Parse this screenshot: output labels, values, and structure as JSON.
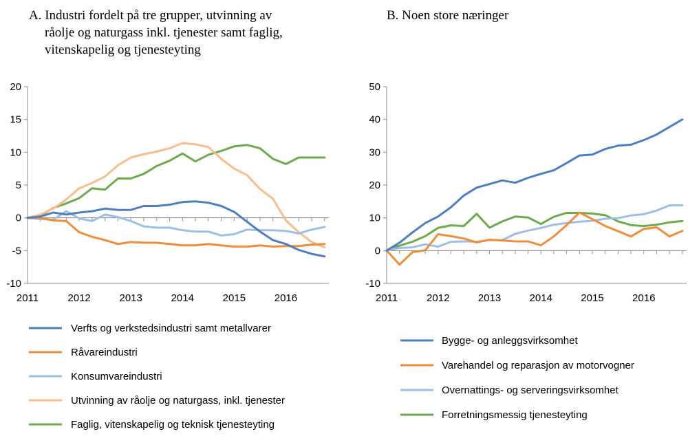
{
  "chart_data": [
    {
      "type": "line",
      "title": "A. Industri fordelt på tre grupper, utvinning av råolje og naturgass inkl. tjenester samt faglig, vitenskapelig og tjenesteyting",
      "title_lines": [
        "A. Industri fordelt på tre grupper, utvinning av",
        "råolje og naturgass inkl. tjenester samt faglig,",
        "vitenskapelig og tjenesteyting"
      ],
      "xlabel": "",
      "ylabel": "",
      "xlim": [
        2011,
        2016.833
      ],
      "ylim": [
        -10,
        20
      ],
      "yticks": [
        -10,
        -5,
        0,
        5,
        10,
        15,
        20
      ],
      "ytick_labels": [
        "-10",
        "-5",
        "0",
        "5",
        "10",
        "15",
        "20"
      ],
      "xticks": [
        2011,
        2012,
        2013,
        2014,
        2015,
        2016
      ],
      "xtick_labels": [
        "2011",
        "2012",
        "2013",
        "2014",
        "2015",
        "2016"
      ],
      "grid": false,
      "legend_position": "bottom",
      "x": [
        2011.0,
        2011.25,
        2011.5,
        2011.75,
        2012.0,
        2012.25,
        2012.5,
        2012.75,
        2013.0,
        2013.25,
        2013.5,
        2013.75,
        2014.0,
        2014.25,
        2014.5,
        2014.75,
        2015.0,
        2015.25,
        2015.5,
        2015.75,
        2016.0,
        2016.25,
        2016.5,
        2016.75
      ],
      "series": [
        {
          "name": "Verfts og verkstedsindustri samt metallvarer",
          "color": "#4E7EC0",
          "values": [
            0,
            0.2,
            0.8,
            0.5,
            0.8,
            1.0,
            1.4,
            1.2,
            1.2,
            1.8,
            1.8,
            2.0,
            2.4,
            2.5,
            2.3,
            1.8,
            0.9,
            -0.6,
            -2.1,
            -3.4,
            -4.0,
            -4.9,
            -5.5,
            -5.9
          ]
        },
        {
          "name": "Råvareindustri",
          "color": "#F08D3B",
          "values": [
            0,
            0.0,
            -0.4,
            -0.5,
            -2.2,
            -2.9,
            -3.4,
            -4.0,
            -3.7,
            -3.8,
            -3.8,
            -4.0,
            -4.2,
            -4.2,
            -4.0,
            -4.2,
            -4.4,
            -4.4,
            -4.2,
            -4.4,
            -4.3,
            -4.3,
            -4.1,
            -4.0
          ]
        },
        {
          "name": "Konsumvareindustri",
          "color": "#9FBEE3",
          "values": [
            0,
            -0.2,
            -0.3,
            1.0,
            -0.1,
            -0.5,
            0.5,
            0.1,
            -0.5,
            -1.3,
            -1.5,
            -1.5,
            -1.9,
            -2.1,
            -2.1,
            -2.7,
            -2.5,
            -1.8,
            -1.9,
            -1.9,
            -2.0,
            -2.4,
            -1.8,
            -1.4
          ]
        },
        {
          "name": "Utvinning av råolje og naturgass, inkl. tjenester",
          "color": "#F7BE8D",
          "values": [
            0,
            0.5,
            1.4,
            2.8,
            4.5,
            5.3,
            6.3,
            8.0,
            9.2,
            9.7,
            10.1,
            10.6,
            11.4,
            11.2,
            10.8,
            9.0,
            7.5,
            6.5,
            4.4,
            2.9,
            -0.4,
            -2.2,
            -3.7,
            -4.5
          ]
        },
        {
          "name": "Faglig, vitenskapelig og teknisk tjenesteyting",
          "color": "#6EAA4D",
          "values": [
            0,
            0.3,
            1.5,
            2.2,
            3.0,
            4.5,
            4.3,
            6.0,
            6.0,
            6.7,
            7.9,
            8.7,
            9.8,
            8.6,
            9.6,
            10.2,
            10.9,
            11.1,
            10.6,
            9.0,
            8.2,
            9.2,
            9.2,
            9.2
          ]
        }
      ]
    },
    {
      "type": "line",
      "title": "B. Noen store næringer",
      "title_lines": [
        "B. Noen store næringer"
      ],
      "xlabel": "",
      "ylabel": "",
      "xlim": [
        2011,
        2016.833
      ],
      "ylim": [
        -10,
        50
      ],
      "yticks": [
        -10,
        0,
        10,
        20,
        30,
        40,
        50
      ],
      "ytick_labels": [
        "-10",
        "0",
        "10",
        "20",
        "30",
        "40",
        "50"
      ],
      "xticks": [
        2011,
        2012,
        2013,
        2014,
        2015,
        2016
      ],
      "xtick_labels": [
        "2011",
        "2012",
        "2013",
        "2014",
        "2015",
        "2016"
      ],
      "grid": false,
      "legend_position": "bottom",
      "x": [
        2011.0,
        2011.25,
        2011.5,
        2011.75,
        2012.0,
        2012.25,
        2012.5,
        2012.75,
        2013.0,
        2013.25,
        2013.5,
        2013.75,
        2014.0,
        2014.25,
        2014.5,
        2014.75,
        2015.0,
        2015.25,
        2015.5,
        2015.75,
        2016.0,
        2016.25,
        2016.5,
        2016.75
      ],
      "series": [
        {
          "name": "Bygge- og anleggsvirksomhet",
          "color": "#4E7EC0",
          "values": [
            0,
            2.4,
            5.5,
            8.4,
            10.4,
            13.2,
            16.8,
            19.2,
            20.3,
            21.4,
            20.7,
            22.2,
            23.4,
            24.5,
            26.7,
            29.0,
            29.3,
            31.0,
            32.0,
            32.3,
            33.7,
            35.4,
            37.7,
            40.0
          ]
        },
        {
          "name": "Varehandel og reparasjon av motorvogner",
          "color": "#F08D3B",
          "values": [
            0,
            -4.3,
            -0.5,
            0.1,
            5.0,
            4.4,
            3.7,
            2.5,
            3.3,
            3.1,
            2.8,
            2.8,
            1.6,
            4.3,
            7.8,
            11.6,
            9.6,
            7.5,
            5.9,
            4.3,
            6.6,
            7.1,
            4.3,
            6.0
          ]
        },
        {
          "name": "Overnattings- og serveringsvirksomhet",
          "color": "#9FBEE3",
          "values": [
            0,
            0.8,
            1.0,
            1.9,
            1.2,
            2.7,
            2.8,
            2.7,
            3.2,
            3.2,
            5.1,
            6.1,
            6.9,
            7.9,
            8.4,
            8.8,
            9.1,
            9.7,
            9.9,
            10.7,
            11.1,
            12.2,
            13.8,
            13.8
          ]
        },
        {
          "name": "Forretningsmessig tjenesteyting",
          "color": "#6EAA4D",
          "values": [
            0,
            1.5,
            2.7,
            4.4,
            6.9,
            7.7,
            7.5,
            11.2,
            7.0,
            8.9,
            10.4,
            10.1,
            8.1,
            10.3,
            11.5,
            11.5,
            11.3,
            10.8,
            8.9,
            7.8,
            7.5,
            7.9,
            8.6,
            9.0
          ]
        }
      ]
    }
  ]
}
